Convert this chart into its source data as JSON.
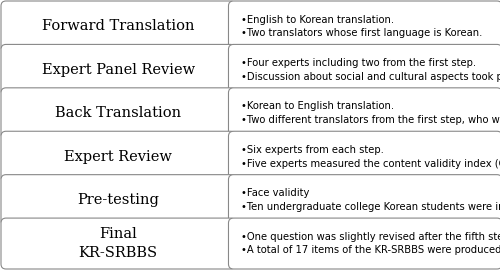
{
  "rows": [
    {
      "label": "Forward Translation",
      "bullets": [
        "English to Korean translation.",
        "Two translators whose first language is Korean."
      ]
    },
    {
      "label": "Expert Panel Review",
      "bullets": [
        "Four experts including two from the first step.",
        "Discussion about social and cultural aspects took place."
      ]
    },
    {
      "label": "Back Translation",
      "bullets": [
        "Korean to English translation.",
        "Two different translators from the first step, who were fluent in English."
      ]
    },
    {
      "label": "Expert Review",
      "bullets": [
        "Six experts from each step.",
        "Five experts measured the content validity index (CVI), excluding the first author."
      ]
    },
    {
      "label": "Pre-testing",
      "bullets": [
        "Face validity",
        "Ten undergraduate college Korean students were involved."
      ]
    },
    {
      "label": "Final\nKR-SRBBS",
      "bullets": [
        "One question was slightly revised after the fifth step.",
        "A total of 17 items of the KR-SRBBS were produced."
      ]
    }
  ],
  "background_color": "#ffffff",
  "box_facecolor": "#ffffff",
  "box_edgecolor": "#888888",
  "label_fontsize": 10.5,
  "bullet_fontsize": 7.2,
  "label_font_family": "serif",
  "bullet_font_family": "sans-serif",
  "fig_width": 5.0,
  "fig_height": 2.7,
  "dpi": 100
}
